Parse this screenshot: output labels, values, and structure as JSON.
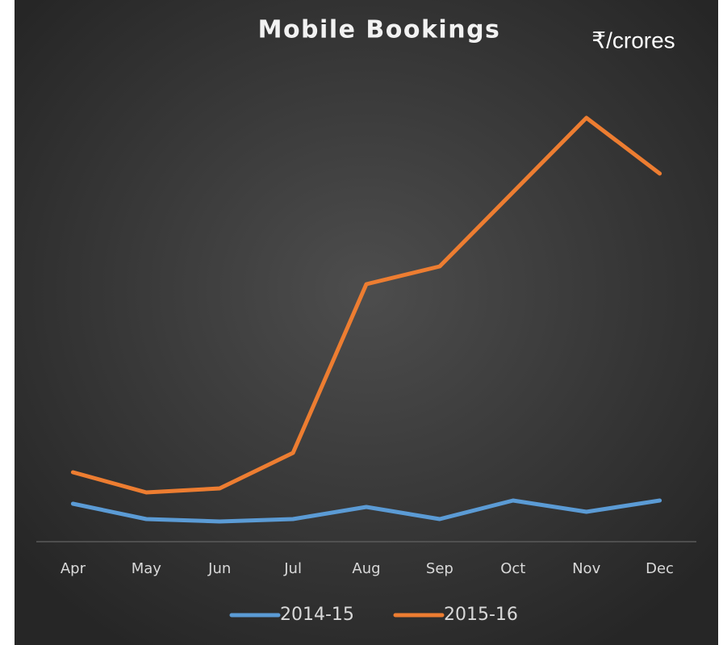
{
  "chart_data": {
    "type": "line",
    "title": "Mobile Bookings",
    "subtitle": "₹/crores",
    "categories": [
      "Apr",
      "May",
      "Jun",
      "Jul",
      "Aug",
      "Sep",
      "Oct",
      "Nov",
      "Dec"
    ],
    "series": [
      {
        "name": "2014-15",
        "color": "#5b9bd5",
        "values": [
          47,
          28,
          25,
          28,
          43,
          28,
          51,
          37,
          51
        ]
      },
      {
        "name": "2015-16",
        "color": "#ed7d31",
        "values": [
          86,
          61,
          66,
          110,
          319,
          341,
          433,
          525,
          456
        ]
      }
    ],
    "ylim": [
      0,
      550
    ],
    "legend": "bottom"
  }
}
